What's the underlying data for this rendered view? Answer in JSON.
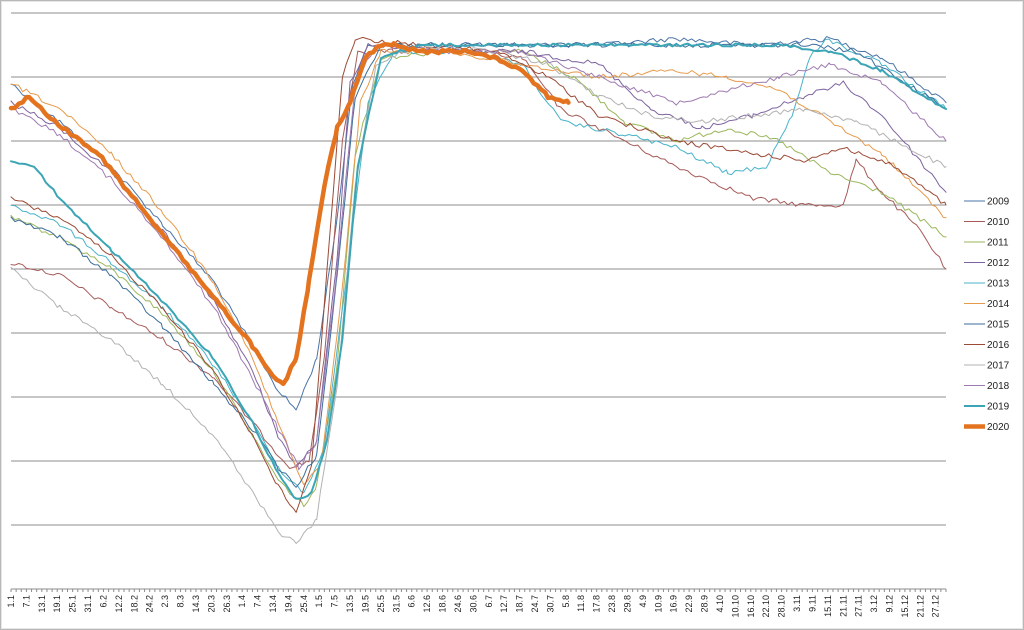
{
  "chart_data": {
    "type": "line",
    "title": "",
    "xlabel": "",
    "ylabel": "",
    "grid": true,
    "legend_position": "right",
    "x_range": [
      1,
      365
    ],
    "y_levels": 9,
    "x_tick_labels": [
      "1.1",
      "7.1",
      "13.1",
      "19.1",
      "25.1",
      "31.1",
      "6.2",
      "12.2",
      "18.2",
      "24.2",
      "2.3",
      "8.3",
      "14.3",
      "20.3",
      "26.3",
      "1.4",
      "7.4",
      "13.4",
      "19.4",
      "25.4",
      "1.5",
      "7.5",
      "13.5",
      "19.5",
      "25.5",
      "31.5",
      "6.6",
      "12.6",
      "18.6",
      "24.6",
      "30.6",
      "6.7",
      "12.7",
      "18.7",
      "24.7",
      "30.7",
      "5.8",
      "11.8",
      "17.8",
      "23.8",
      "29.8",
      "4.9",
      "10.9",
      "16.9",
      "22.9",
      "28.9",
      "4.10",
      "10.10",
      "16.10",
      "22.10",
      "28.10",
      "3.11",
      "9.11",
      "15.11",
      "21.11",
      "27.11",
      "3.12",
      "9.12",
      "15.12",
      "21.12",
      "27.12"
    ],
    "series": [
      {
        "name": "2009",
        "color": "#4a74a8",
        "width": 1,
        "points": [
          [
            1,
            7.9
          ],
          [
            20,
            7.3
          ],
          [
            40,
            6.6
          ],
          [
            60,
            5.7
          ],
          [
            80,
            4.8
          ],
          [
            95,
            3.8
          ],
          [
            105,
            3.1
          ],
          [
            112,
            2.8
          ],
          [
            120,
            3.6
          ],
          [
            128,
            5.8
          ],
          [
            134,
            7.9
          ],
          [
            140,
            8.5
          ],
          [
            160,
            8.5
          ],
          [
            200,
            8.5
          ],
          [
            230,
            8.5
          ],
          [
            260,
            8.6
          ],
          [
            290,
            8.5
          ],
          [
            320,
            8.6
          ],
          [
            340,
            8.3
          ],
          [
            365,
            7.6
          ]
        ]
      },
      {
        "name": "2010",
        "color": "#a65b59",
        "width": 1,
        "points": [
          [
            1,
            5.1
          ],
          [
            20,
            4.9
          ],
          [
            40,
            4.4
          ],
          [
            60,
            3.9
          ],
          [
            80,
            3.3
          ],
          [
            95,
            2.6
          ],
          [
            105,
            2.1
          ],
          [
            110,
            1.9
          ],
          [
            117,
            2.0
          ],
          [
            123,
            3.6
          ],
          [
            130,
            7.0
          ],
          [
            136,
            8.4
          ],
          [
            150,
            8.4
          ],
          [
            180,
            8.4
          ],
          [
            200,
            8.3
          ],
          [
            215,
            7.5
          ],
          [
            230,
            7.2
          ],
          [
            260,
            6.6
          ],
          [
            290,
            6.1
          ],
          [
            310,
            6.0
          ],
          [
            325,
            6.0
          ],
          [
            330,
            6.7
          ],
          [
            340,
            6.2
          ],
          [
            355,
            5.6
          ],
          [
            365,
            5.0
          ]
        ]
      },
      {
        "name": "2011",
        "color": "#9bb65c",
        "width": 1,
        "points": [
          [
            1,
            5.8
          ],
          [
            20,
            5.5
          ],
          [
            40,
            5.0
          ],
          [
            60,
            4.3
          ],
          [
            80,
            3.4
          ],
          [
            95,
            2.4
          ],
          [
            105,
            1.7
          ],
          [
            115,
            1.3
          ],
          [
            120,
            1.6
          ],
          [
            128,
            3.5
          ],
          [
            135,
            6.8
          ],
          [
            145,
            8.3
          ],
          [
            170,
            8.4
          ],
          [
            200,
            8.4
          ],
          [
            220,
            8.0
          ],
          [
            240,
            7.3
          ],
          [
            260,
            7.0
          ],
          [
            280,
            7.2
          ],
          [
            300,
            7.0
          ],
          [
            320,
            6.5
          ],
          [
            340,
            6.2
          ],
          [
            365,
            5.5
          ]
        ]
      },
      {
        "name": "2012",
        "color": "#7e63a0",
        "width": 1,
        "points": [
          [
            1,
            7.6
          ],
          [
            20,
            7.2
          ],
          [
            40,
            6.5
          ],
          [
            60,
            5.6
          ],
          [
            80,
            4.5
          ],
          [
            95,
            3.4
          ],
          [
            105,
            2.4
          ],
          [
            112,
            1.9
          ],
          [
            120,
            2.3
          ],
          [
            128,
            5.2
          ],
          [
            133,
            7.9
          ],
          [
            140,
            8.5
          ],
          [
            170,
            8.4
          ],
          [
            200,
            8.4
          ],
          [
            230,
            8.2
          ],
          [
            250,
            7.5
          ],
          [
            270,
            7.2
          ],
          [
            290,
            7.4
          ],
          [
            310,
            7.7
          ],
          [
            325,
            7.9
          ],
          [
            340,
            7.4
          ],
          [
            365,
            6.2
          ]
        ]
      },
      {
        "name": "2013",
        "color": "#48b3c9",
        "width": 1,
        "points": [
          [
            1,
            6.0
          ],
          [
            20,
            5.7
          ],
          [
            40,
            5.1
          ],
          [
            60,
            4.4
          ],
          [
            80,
            3.5
          ],
          [
            95,
            2.6
          ],
          [
            105,
            1.9
          ],
          [
            115,
            1.5
          ],
          [
            123,
            2.2
          ],
          [
            132,
            5.0
          ],
          [
            140,
            7.6
          ],
          [
            150,
            8.4
          ],
          [
            180,
            8.4
          ],
          [
            200,
            8.2
          ],
          [
            215,
            7.3
          ],
          [
            240,
            7.1
          ],
          [
            260,
            6.9
          ],
          [
            280,
            6.5
          ],
          [
            295,
            6.6
          ],
          [
            305,
            7.4
          ],
          [
            312,
            8.3
          ],
          [
            318,
            8.6
          ],
          [
            340,
            8.2
          ],
          [
            365,
            7.5
          ]
        ]
      },
      {
        "name": "2014",
        "color": "#e79a4b",
        "width": 1,
        "points": [
          [
            1,
            7.9
          ],
          [
            20,
            7.5
          ],
          [
            40,
            6.8
          ],
          [
            60,
            5.9
          ],
          [
            80,
            4.8
          ],
          [
            95,
            3.6
          ],
          [
            105,
            2.6
          ],
          [
            115,
            1.6
          ],
          [
            122,
            2.0
          ],
          [
            130,
            4.7
          ],
          [
            137,
            7.6
          ],
          [
            145,
            8.4
          ],
          [
            170,
            8.4
          ],
          [
            200,
            8.2
          ],
          [
            230,
            8.0
          ],
          [
            260,
            8.1
          ],
          [
            280,
            8.0
          ],
          [
            300,
            7.8
          ],
          [
            320,
            7.3
          ],
          [
            340,
            6.8
          ],
          [
            365,
            5.8
          ]
        ]
      },
      {
        "name": "2015",
        "color": "#3c6d9a",
        "width": 1,
        "points": [
          [
            1,
            5.8
          ],
          [
            20,
            5.5
          ],
          [
            40,
            4.9
          ],
          [
            60,
            4.1
          ],
          [
            80,
            3.2
          ],
          [
            95,
            2.5
          ],
          [
            105,
            1.9
          ],
          [
            112,
            1.6
          ],
          [
            120,
            2.1
          ],
          [
            128,
            4.9
          ],
          [
            135,
            7.7
          ],
          [
            145,
            8.5
          ],
          [
            170,
            8.5
          ],
          [
            200,
            8.5
          ],
          [
            225,
            8.5
          ],
          [
            250,
            8.5
          ],
          [
            280,
            8.5
          ],
          [
            310,
            8.5
          ],
          [
            330,
            8.4
          ],
          [
            365,
            7.5
          ]
        ]
      },
      {
        "name": "2016",
        "color": "#9b4a35",
        "width": 1,
        "points": [
          [
            1,
            6.1
          ],
          [
            20,
            5.8
          ],
          [
            40,
            5.2
          ],
          [
            60,
            4.4
          ],
          [
            80,
            3.4
          ],
          [
            95,
            2.4
          ],
          [
            105,
            1.6
          ],
          [
            112,
            1.2
          ],
          [
            118,
            1.9
          ],
          [
            125,
            5.5
          ],
          [
            130,
            8.0
          ],
          [
            135,
            8.6
          ],
          [
            160,
            8.5
          ],
          [
            190,
            8.4
          ],
          [
            210,
            8.0
          ],
          [
            230,
            7.4
          ],
          [
            260,
            7.0
          ],
          [
            290,
            6.8
          ],
          [
            310,
            6.7
          ],
          [
            325,
            6.9
          ],
          [
            345,
            6.6
          ],
          [
            365,
            6.0
          ]
        ]
      },
      {
        "name": "2017",
        "color": "#b2b2b2",
        "width": 1,
        "points": [
          [
            1,
            5.0
          ],
          [
            20,
            4.4
          ],
          [
            40,
            3.9
          ],
          [
            60,
            3.2
          ],
          [
            80,
            2.4
          ],
          [
            95,
            1.5
          ],
          [
            105,
            0.9
          ],
          [
            112,
            0.7
          ],
          [
            120,
            1.1
          ],
          [
            128,
            3.2
          ],
          [
            135,
            6.3
          ],
          [
            143,
            8.2
          ],
          [
            160,
            8.5
          ],
          [
            190,
            8.4
          ],
          [
            210,
            8.2
          ],
          [
            230,
            7.7
          ],
          [
            250,
            7.4
          ],
          [
            270,
            7.3
          ],
          [
            290,
            7.4
          ],
          [
            310,
            7.5
          ],
          [
            330,
            7.3
          ],
          [
            365,
            6.6
          ]
        ]
      },
      {
        "name": "2018",
        "color": "#9e7ab0",
        "width": 1,
        "points": [
          [
            1,
            7.5
          ],
          [
            20,
            7.1
          ],
          [
            40,
            6.4
          ],
          [
            60,
            5.5
          ],
          [
            80,
            4.4
          ],
          [
            95,
            3.3
          ],
          [
            105,
            2.5
          ],
          [
            113,
            1.9
          ],
          [
            120,
            2.3
          ],
          [
            128,
            5.0
          ],
          [
            135,
            7.9
          ],
          [
            143,
            8.5
          ],
          [
            170,
            8.4
          ],
          [
            200,
            8.4
          ],
          [
            230,
            8.0
          ],
          [
            260,
            7.6
          ],
          [
            280,
            7.8
          ],
          [
            300,
            8.0
          ],
          [
            320,
            8.2
          ],
          [
            340,
            7.9
          ],
          [
            365,
            7.0
          ]
        ]
      },
      {
        "name": "2019",
        "color": "#3ba5b5",
        "width": 2,
        "points": [
          [
            1,
            6.7
          ],
          [
            10,
            6.6
          ],
          [
            20,
            6.1
          ],
          [
            40,
            5.3
          ],
          [
            60,
            4.5
          ],
          [
            80,
            3.6
          ],
          [
            95,
            2.6
          ],
          [
            105,
            1.8
          ],
          [
            112,
            1.4
          ],
          [
            118,
            1.5
          ],
          [
            124,
            2.3
          ],
          [
            130,
            3.9
          ],
          [
            136,
            6.6
          ],
          [
            145,
            8.3
          ],
          [
            160,
            8.5
          ],
          [
            200,
            8.5
          ],
          [
            230,
            8.5
          ],
          [
            260,
            8.5
          ],
          [
            280,
            8.5
          ],
          [
            300,
            8.5
          ],
          [
            320,
            8.4
          ],
          [
            340,
            8.1
          ],
          [
            365,
            7.5
          ]
        ]
      },
      {
        "name": "2020",
        "color": "#e4731f",
        "width": 4.5,
        "points": [
          [
            1,
            7.5
          ],
          [
            8,
            7.7
          ],
          [
            15,
            7.4
          ],
          [
            25,
            7.1
          ],
          [
            35,
            6.8
          ],
          [
            45,
            6.3
          ],
          [
            55,
            5.8
          ],
          [
            65,
            5.3
          ],
          [
            75,
            4.8
          ],
          [
            85,
            4.3
          ],
          [
            95,
            3.8
          ],
          [
            103,
            3.3
          ],
          [
            107,
            3.2
          ],
          [
            112,
            3.6
          ],
          [
            117,
            4.8
          ],
          [
            123,
            6.3
          ],
          [
            128,
            7.2
          ],
          [
            133,
            7.6
          ],
          [
            139,
            8.3
          ],
          [
            145,
            8.5
          ],
          [
            150,
            8.5
          ],
          [
            160,
            8.4
          ],
          [
            170,
            8.4
          ],
          [
            180,
            8.4
          ],
          [
            190,
            8.3
          ],
          [
            200,
            8.1
          ],
          [
            210,
            7.7
          ],
          [
            218,
            7.6
          ]
        ]
      }
    ]
  }
}
